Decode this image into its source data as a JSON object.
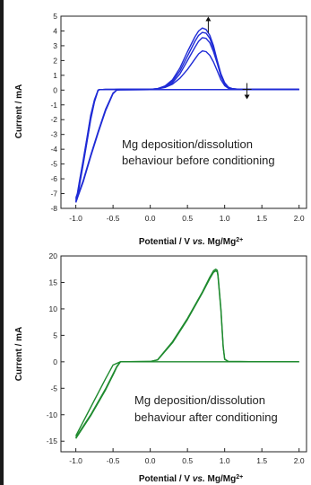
{
  "chart_data": [
    {
      "type": "line",
      "color": "#1f2bd6",
      "xlabel": "Potential / V vs. Mg/Mg2+",
      "ylabel": "Current / mA",
      "xlim": [
        -1.2,
        2.1
      ],
      "ylim": [
        -8,
        5
      ],
      "xticks": [
        "-1.0",
        "-0.5",
        "0.0",
        "0.5",
        "1.0",
        "1.5",
        "2.0"
      ],
      "yticks": [
        "5",
        "4",
        "3",
        "2",
        "1",
        "0",
        "-1",
        "-2",
        "-3",
        "-4",
        "-5",
        "-6",
        "-7",
        "-8"
      ],
      "annotation": [
        "Mg deposition/dissolution",
        "behaviour before conditioning"
      ],
      "arrows": [
        {
          "at_x": 0.78,
          "at_y": 4.3,
          "direction": "up"
        },
        {
          "at_x": 1.3,
          "at_y": 0.05,
          "direction": "down"
        }
      ],
      "series": [
        {
          "x": [
            -1.0,
            -0.98,
            -0.95,
            -0.9,
            -0.85,
            -0.8,
            -0.75,
            -0.7,
            -0.68,
            -0.6,
            -0.4,
            -0.2,
            0.0,
            0.1,
            0.2,
            0.3,
            0.4,
            0.5,
            0.6,
            0.65,
            0.7,
            0.75,
            0.8,
            0.85,
            0.9,
            0.95,
            1.0,
            1.05,
            1.1,
            1.2,
            1.5,
            2.0
          ],
          "y": [
            -7.6,
            -7.3,
            -6.4,
            -5.0,
            -3.5,
            -2.0,
            -0.8,
            0.0,
            0.03,
            0.04,
            0.05,
            0.05,
            0.05,
            0.1,
            0.28,
            0.7,
            1.5,
            2.6,
            3.6,
            4.0,
            4.2,
            4.1,
            3.7,
            3.0,
            2.0,
            1.1,
            0.5,
            0.2,
            0.1,
            0.05,
            0.05,
            0.05
          ]
        },
        {
          "x": [
            -1.0,
            -0.98,
            -0.95,
            -0.9,
            -0.85,
            -0.8,
            -0.75,
            -0.7,
            -0.68,
            -0.6,
            -0.4,
            -0.2,
            0.0,
            0.1,
            0.2,
            0.3,
            0.4,
            0.5,
            0.6,
            0.65,
            0.7,
            0.75,
            0.8,
            0.85,
            0.9,
            0.95,
            1.0,
            1.05,
            1.1,
            1.2,
            1.5,
            2.0
          ],
          "y": [
            -7.5,
            -7.2,
            -6.3,
            -4.9,
            -3.4,
            -1.9,
            -0.75,
            0.0,
            0.03,
            0.04,
            0.05,
            0.05,
            0.05,
            0.1,
            0.25,
            0.6,
            1.3,
            2.3,
            3.3,
            3.7,
            3.9,
            3.85,
            3.5,
            2.8,
            1.9,
            1.0,
            0.45,
            0.18,
            0.1,
            0.05,
            0.05,
            0.05
          ]
        },
        {
          "x": [
            -1.0,
            -0.98,
            -0.95,
            -0.9,
            -0.85,
            -0.8,
            -0.75,
            -0.7,
            -0.68,
            -0.6,
            -0.4,
            -0.2,
            0.0,
            0.1,
            0.2,
            0.3,
            0.4,
            0.5,
            0.6,
            0.65,
            0.7,
            0.75,
            0.8,
            0.85,
            0.9,
            0.95,
            1.0,
            1.05,
            1.1,
            1.2,
            1.5,
            2.0
          ],
          "y": [
            -7.4,
            -7.1,
            -6.2,
            -4.8,
            -3.3,
            -1.8,
            -0.7,
            0.0,
            0.03,
            0.04,
            0.05,
            0.05,
            0.05,
            0.08,
            0.22,
            0.5,
            1.1,
            2.0,
            2.9,
            3.3,
            3.55,
            3.5,
            3.2,
            2.6,
            1.8,
            0.95,
            0.4,
            0.15,
            0.08,
            0.05,
            0.05,
            0.05
          ]
        },
        {
          "x": [
            -1.0,
            -0.98,
            -0.95,
            -0.9,
            -0.85,
            -0.8,
            -0.75,
            -0.7,
            -0.68,
            -0.6,
            -0.4,
            -0.2,
            0.0,
            0.1,
            0.2,
            0.3,
            0.4,
            0.5,
            0.6,
            0.65,
            0.7,
            0.75,
            0.8,
            0.85,
            0.9,
            0.95,
            1.0,
            1.05,
            1.1,
            1.2,
            1.5,
            2.0
          ],
          "y": [
            -7.3,
            -7.0,
            -6.1,
            -4.7,
            -3.2,
            -1.7,
            -0.65,
            0.0,
            0.03,
            0.04,
            0.05,
            0.05,
            0.05,
            0.08,
            0.18,
            0.4,
            0.8,
            1.4,
            2.1,
            2.45,
            2.65,
            2.6,
            2.35,
            1.9,
            1.3,
            0.7,
            0.3,
            0.12,
            0.06,
            0.05,
            0.05,
            0.05
          ]
        },
        {
          "x": [
            -1.0,
            -0.9,
            -0.8,
            -0.7,
            -0.6,
            -0.5,
            -0.45,
            -0.4,
            0.0,
            0.5,
            1.0,
            1.5,
            2.0
          ],
          "y": [
            -7.6,
            -6.2,
            -4.5,
            -2.9,
            -1.4,
            -0.25,
            0.0,
            0.02,
            0.03,
            0.03,
            0.03,
            0.03,
            0.03
          ]
        },
        {
          "x": [
            -1.0,
            -0.9,
            -0.8,
            -0.7,
            -0.6,
            -0.5,
            -0.45,
            -0.4,
            0.0,
            0.5,
            1.0,
            1.5,
            2.0
          ],
          "y": [
            -7.5,
            -6.1,
            -4.4,
            -2.8,
            -1.3,
            -0.2,
            0.0,
            0.02,
            0.03,
            0.03,
            0.03,
            0.03,
            0.03
          ]
        }
      ]
    },
    {
      "type": "line",
      "color": "#1e8a2e",
      "xlabel": "Potential / V vs. Mg/Mg2+",
      "ylabel": "Current / mA",
      "xlim": [
        -1.2,
        2.1
      ],
      "ylim": [
        -17,
        20
      ],
      "xticks": [
        "-1.0",
        "-0.5",
        "0.0",
        "0.5",
        "1.0",
        "1.5",
        "2.0"
      ],
      "yticks": [
        "20",
        "15",
        "10",
        "5",
        "0",
        "-5",
        "-10",
        "-15"
      ],
      "annotation": [
        "Mg deposition/dissolution",
        "behaviour after conditioning"
      ],
      "series": [
        {
          "x": [
            -1.0,
            -0.8,
            -0.6,
            -0.5,
            -0.45,
            -0.4,
            -0.3,
            0.0,
            0.1,
            0.3,
            0.5,
            0.7,
            0.8,
            0.85,
            0.88,
            0.9,
            0.91,
            0.95,
            0.98,
            1.0,
            1.05,
            1.5,
            2.0
          ],
          "y": [
            -14.5,
            -10.2,
            -5.3,
            -2.5,
            -1.0,
            0.0,
            0.02,
            0.05,
            0.4,
            3.8,
            8.2,
            13.2,
            16.0,
            17.2,
            17.5,
            17.3,
            16.5,
            10.0,
            3.0,
            0.5,
            0.05,
            0.0,
            0.0
          ]
        },
        {
          "x": [
            -1.0,
            -0.8,
            -0.6,
            -0.5,
            -0.45,
            -0.4,
            -0.3,
            0.0,
            0.1,
            0.3,
            0.5,
            0.7,
            0.8,
            0.85,
            0.88,
            0.9,
            0.91,
            0.95,
            0.98,
            1.0,
            1.05,
            1.5,
            2.0
          ],
          "y": [
            -14.3,
            -10.0,
            -5.1,
            -2.3,
            -0.9,
            0.0,
            0.02,
            0.05,
            0.35,
            3.6,
            8.0,
            13.0,
            15.7,
            16.9,
            17.2,
            17.0,
            16.2,
            9.7,
            2.8,
            0.45,
            0.05,
            0.0,
            0.0
          ]
        },
        {
          "x": [
            -1.0,
            -0.8,
            -0.6,
            -0.5,
            -0.4,
            0.0,
            0.5,
            1.0,
            1.5,
            2.0
          ],
          "y": [
            -14.0,
            -8.6,
            -3.2,
            -0.6,
            0.0,
            0.0,
            0.0,
            0.0,
            0.0,
            0.0
          ]
        }
      ]
    }
  ]
}
